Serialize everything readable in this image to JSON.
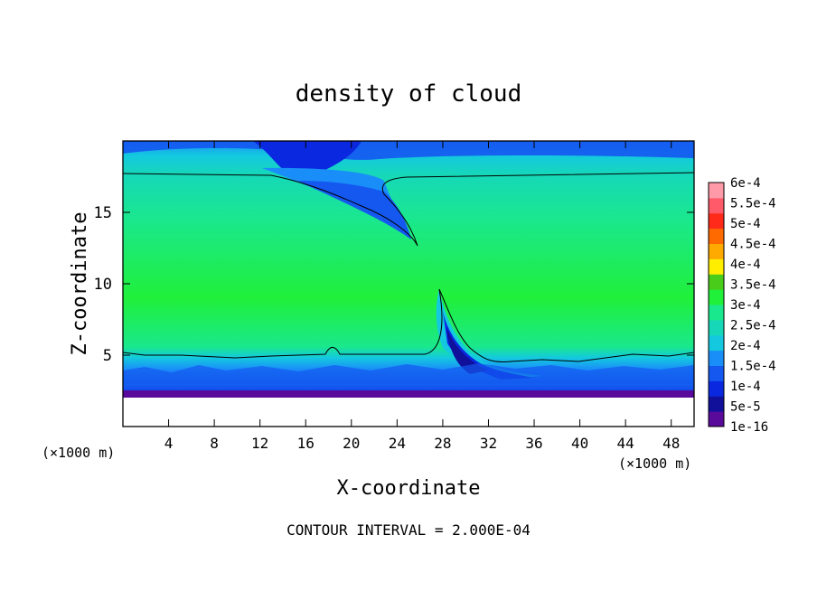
{
  "chart_data": {
    "type": "heatmap",
    "title": "density of cloud",
    "xlabel": "X-coordinate",
    "ylabel": "Z-coordinate",
    "x_unit_left": "(×1000 m)",
    "x_unit_right": "(×1000 m)",
    "xlim": [
      0,
      50
    ],
    "ylim": [
      0,
      20
    ],
    "x_ticks": [
      4,
      8,
      12,
      16,
      20,
      24,
      28,
      32,
      36,
      40,
      44,
      48
    ],
    "y_ticks": [
      5,
      10,
      15
    ],
    "footer": "CONTOUR INTERVAL = 2.000E-04",
    "colorbar": {
      "labels": [
        "1e-16",
        "5e-5",
        "1e-4",
        "1.5e-4",
        "2e-4",
        "2.5e-4",
        "3e-4",
        "3.5e-4",
        "4e-4",
        "4.5e-4",
        "5e-4",
        "5.5e-4",
        "6e-4"
      ],
      "colors": [
        "#5a0a9a",
        "#10109a",
        "#0a28e0",
        "#1458f0",
        "#1a8ef8",
        "#14c8e0",
        "#16d8b8",
        "#1ae88c",
        "#20f03a",
        "#4acc1a",
        "#ffee00",
        "#ffaa00",
        "#ff6a00",
        "#ff2a1a",
        "#ff5a6a",
        "#ff9aa8"
      ]
    },
    "field_features": {
      "lower_boundary_z": 2.0,
      "upper_contour_z": 17.7,
      "lower_contour_z": 5.0,
      "tongue_top": [
        27.8,
        9.7
      ],
      "tongue_base": [
        35.0,
        4.5
      ],
      "upper_intrusion_tip": [
        25.8,
        12.5
      ]
    }
  }
}
